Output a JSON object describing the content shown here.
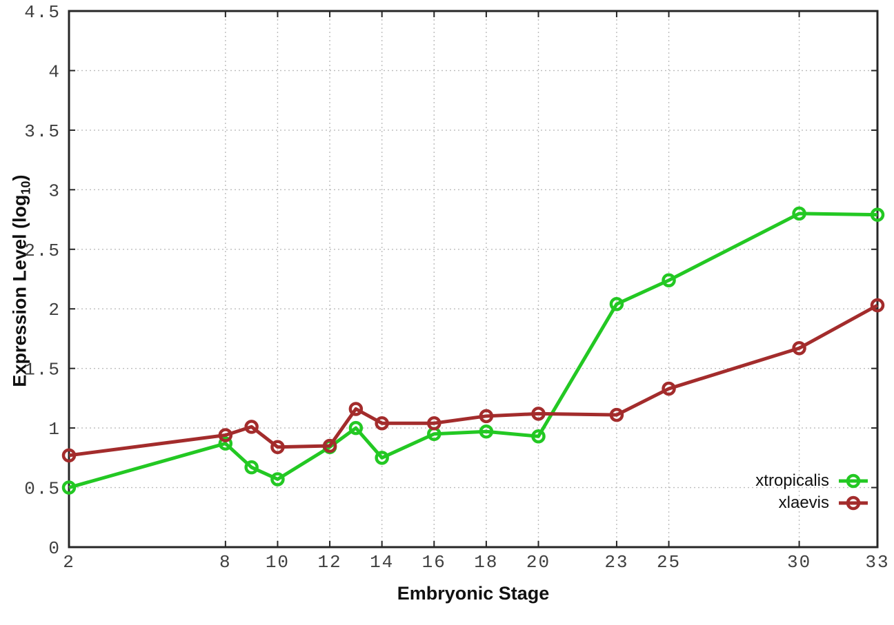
{
  "chart_data": {
    "type": "line",
    "title": "",
    "xlabel": "Embryonic Stage",
    "ylabel": "Expression Level (log10)",
    "ylabel_parts": {
      "prefix": "Expression Level (log",
      "subscript": "10",
      "suffix": ")"
    },
    "xlim": [
      2,
      33
    ],
    "ylim": [
      0,
      4.5
    ],
    "x_ticks": [
      2,
      8,
      10,
      12,
      14,
      16,
      18,
      20,
      23,
      25,
      30,
      33
    ],
    "y_ticks": [
      0,
      0.5,
      1,
      1.5,
      2,
      2.5,
      3,
      3.5,
      4,
      4.5
    ],
    "grid": true,
    "legend_position": "bottom-right-inside",
    "x": [
      2,
      8,
      9,
      10,
      12,
      13,
      14,
      16,
      18,
      20,
      23,
      25,
      30,
      33
    ],
    "series": [
      {
        "name": "xtropicalis",
        "color": "#23c823",
        "marker": "open-circle",
        "values": [
          0.5,
          0.87,
          0.67,
          0.57,
          0.84,
          1.0,
          0.75,
          0.95,
          0.97,
          0.93,
          2.04,
          2.24,
          2.8,
          2.79
        ]
      },
      {
        "name": "xlaevis",
        "color": "#a32c2c",
        "marker": "open-circle",
        "values": [
          0.77,
          0.94,
          1.01,
          0.84,
          0.85,
          1.16,
          1.04,
          1.04,
          1.1,
          1.12,
          1.11,
          1.33,
          1.67,
          2.03
        ]
      }
    ],
    "axis_color": "#262626",
    "grid_color": "#bcbcbc",
    "tick_label_color": "#404040",
    "text_color": "#111111"
  }
}
